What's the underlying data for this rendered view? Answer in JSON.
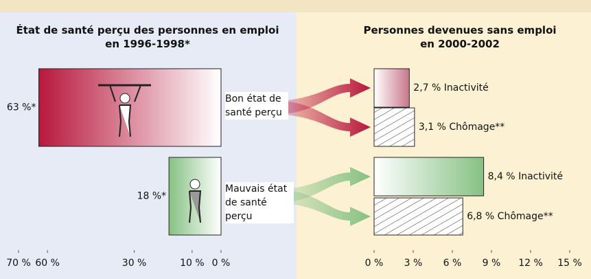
{
  "chart_data": [
    {
      "type": "hbar",
      "title": "État de santé perçu des personnes en emploi en 1996-1998*",
      "categories": [
        "Bon état de santé perçu",
        "Mauvais état de santé perçu"
      ],
      "values": [
        63,
        18
      ],
      "value_labels": [
        "63 %*",
        "18 %*"
      ],
      "colors": [
        "#b8173c",
        "#86c183"
      ],
      "xlim": [
        70,
        0
      ],
      "xticks": [
        {
          "value": 70,
          "label": "70 %"
        },
        {
          "value": 60,
          "label": "60 %"
        },
        {
          "value": 30,
          "label": "30 %"
        },
        {
          "value": 10,
          "label": "10 %"
        },
        {
          "value": 0,
          "label": "0 %"
        }
      ]
    },
    {
      "type": "hbar-grouped",
      "title": "Personnes devenues sans emploi en 2000-2002",
      "series": [
        {
          "name": "Inactivité",
          "values": [
            2.7,
            8.4
          ],
          "value_labels": [
            "2,7 %",
            "8,4 %"
          ],
          "fill": "gradient"
        },
        {
          "name": "Chômage**",
          "values": [
            3.1,
            6.8
          ],
          "value_labels": [
            "3,1 %",
            "6,8 %"
          ],
          "fill": "hatch"
        }
      ],
      "colors": [
        "#c9768b",
        "#86c183"
      ],
      "xlim": [
        0,
        15
      ],
      "xticks": [
        {
          "value": 0,
          "label": "0 %"
        },
        {
          "value": 3,
          "label": "3 %"
        },
        {
          "value": 6,
          "label": "6 %"
        },
        {
          "value": 9,
          "label": "9 %"
        },
        {
          "value": 12,
          "label": "12 %"
        },
        {
          "value": 15,
          "label": "15 %"
        }
      ]
    }
  ]
}
